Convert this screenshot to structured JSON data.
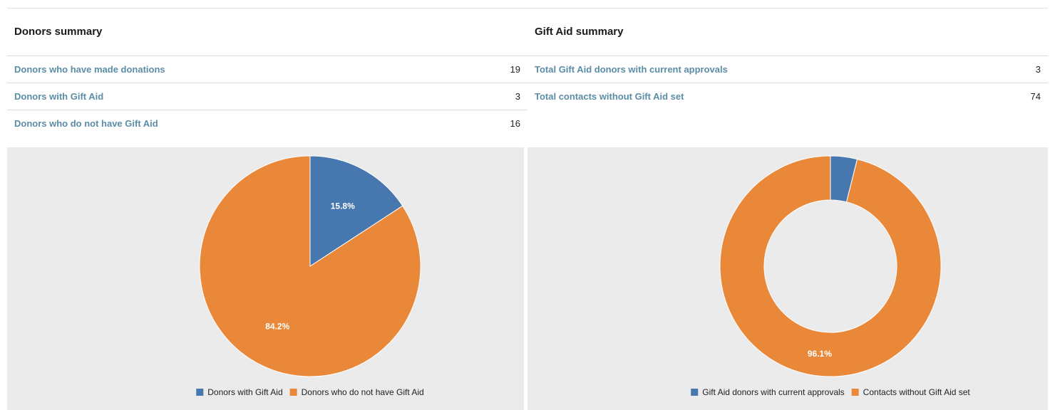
{
  "colors": {
    "blue": "#4677ae",
    "orange": "#e88838",
    "link": "#5b8da6",
    "chart_bg": "#ebebeb"
  },
  "donors": {
    "title": "Donors summary",
    "rows": [
      {
        "label": "Donors who have made donations",
        "value": "19"
      },
      {
        "label": "Donors with Gift Aid",
        "value": "3"
      },
      {
        "label": "Donors who do not have Gift Aid",
        "value": "16"
      }
    ]
  },
  "giftaid": {
    "title": "Gift Aid summary",
    "rows": [
      {
        "label": "Total Gift Aid donors with current approvals",
        "value": "3"
      },
      {
        "label": "Total contacts without Gift Aid set",
        "value": "74"
      }
    ]
  },
  "chart_data": [
    {
      "type": "pie",
      "categories": [
        "Donors with Gift Aid",
        "Donors who do not have Gift Aid"
      ],
      "values": [
        3,
        16
      ],
      "data_labels": [
        "15.8%",
        "84.2%"
      ],
      "colors": [
        "#4677ae",
        "#e88838"
      ],
      "legend": "bottom-center"
    },
    {
      "type": "pie",
      "donut": true,
      "categories": [
        "Gift Aid donors with current approvals",
        "Contacts without Gift Aid set"
      ],
      "values": [
        3,
        74
      ],
      "data_labels": [
        "",
        "96.1%"
      ],
      "colors": [
        "#4677ae",
        "#e88838"
      ],
      "legend": "bottom-center"
    }
  ]
}
